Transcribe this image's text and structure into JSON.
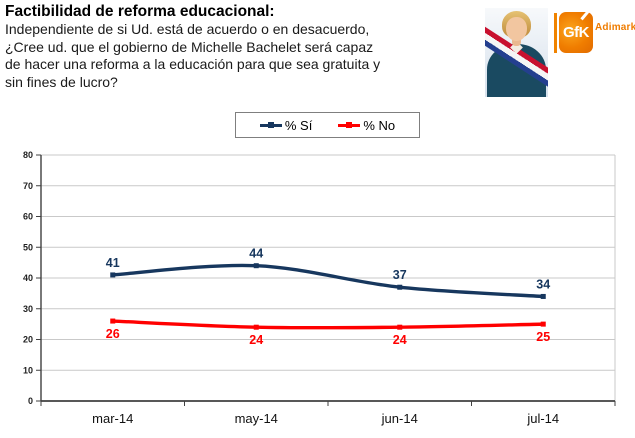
{
  "header": {
    "title": "Factibilidad de reforma educacional:",
    "question_lines": [
      "Independiente de si Ud. está de acuerdo o en desacuerdo,",
      "¿Cree ud. que el gobierno de Michelle Bachelet será capaz",
      "de hacer una reforma a la educación para que sea gratuita y",
      "sin fines de lucro?"
    ]
  },
  "branding": {
    "gfk": "GfK",
    "adimark": "Adimark",
    "orange": "#F07D00"
  },
  "legend": {
    "si_label": "% Sí",
    "no_label": "% No"
  },
  "chart_data": {
    "type": "line",
    "title": "Factibilidad de reforma educacional",
    "categories": [
      "mar-14",
      "may-14",
      "jun-14",
      "jul-14"
    ],
    "series": [
      {
        "name": "% Sí",
        "values": [
          41,
          44,
          37,
          34
        ],
        "color": "#17375E",
        "label_position": "above"
      },
      {
        "name": "% No",
        "values": [
          26,
          24,
          24,
          25
        ],
        "color": "#FF0000",
        "label_position": "below"
      }
    ],
    "ylim": [
      0,
      80
    ],
    "ytick_step": 10,
    "grid": true,
    "legend_position": "top-center",
    "xlabel": "",
    "ylabel": ""
  }
}
